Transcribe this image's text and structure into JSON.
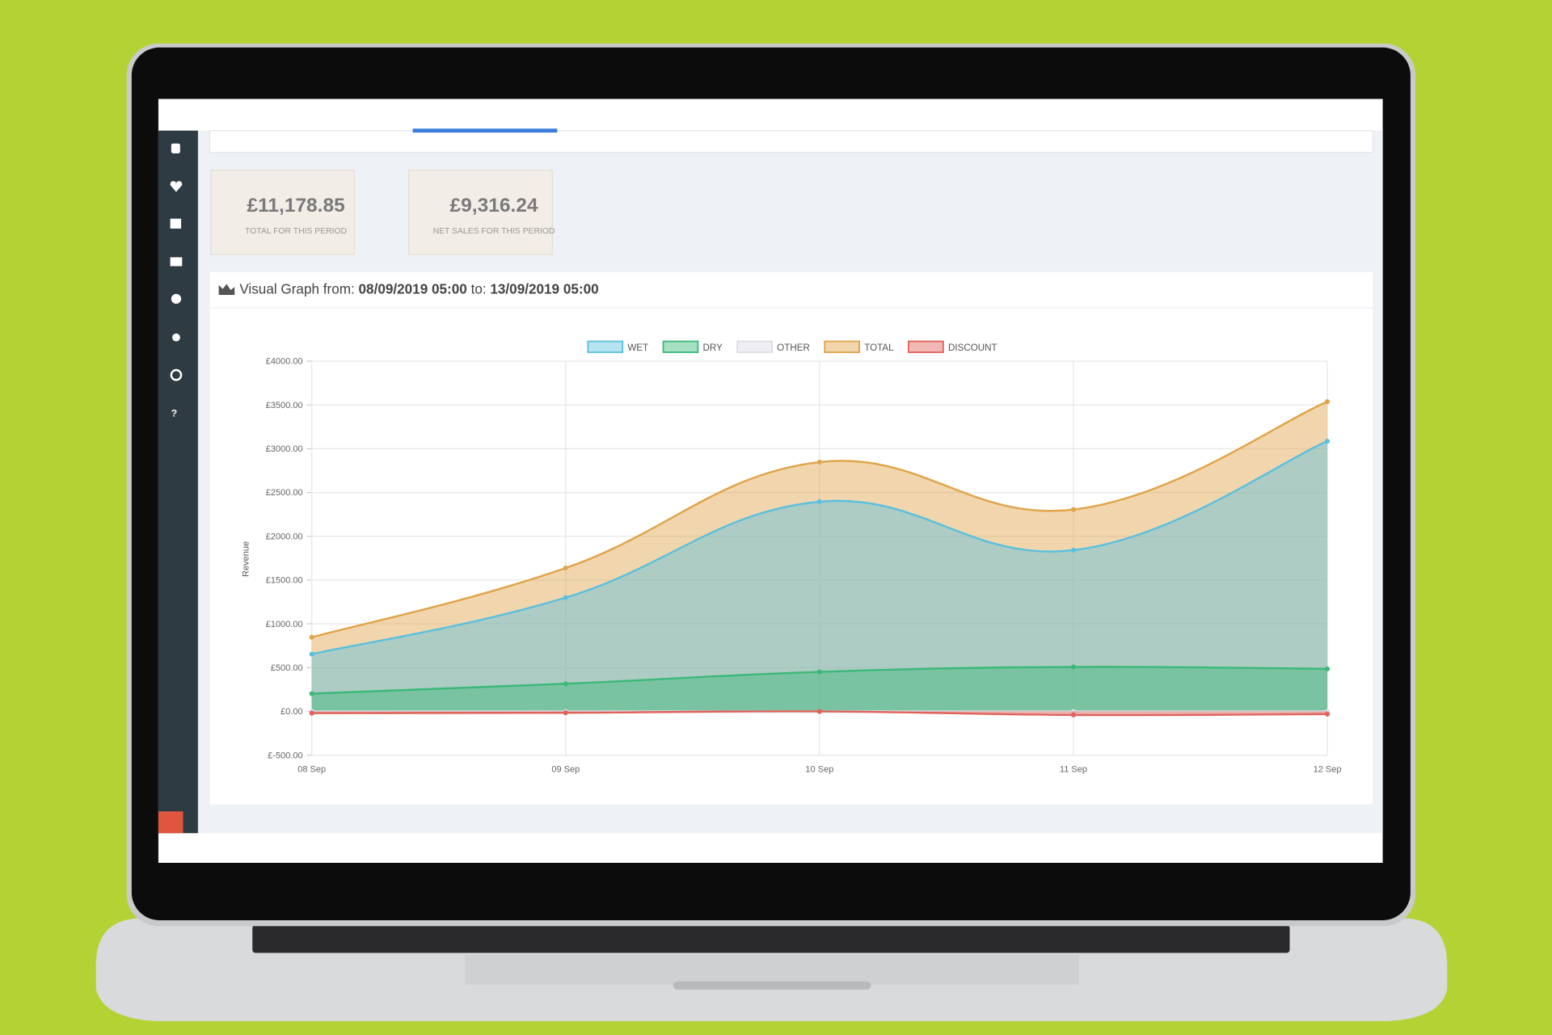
{
  "stats": [
    {
      "value": "£11,178.85",
      "label": "TOTAL FOR THIS PERIOD"
    },
    {
      "value": "£9,316.24",
      "label": "NET SALES FOR THIS PERIOD"
    }
  ],
  "graph_header": {
    "prefix": "Visual Graph from:",
    "from": "08/09/2019 05:00",
    "middle": "to:",
    "to": "13/09/2019 05:00"
  },
  "chart_data": {
    "type": "area",
    "y_label": "Revenue",
    "categories": [
      "08 Sep",
      "09 Sep",
      "10 Sep",
      "11 Sep",
      "12 Sep"
    ],
    "series": [
      {
        "name": "WET",
        "color": "#5bc0de",
        "values": [
          655,
          1300,
          2395,
          1842,
          3085
        ]
      },
      {
        "name": "DRY",
        "color": "#3cb87a",
        "values": [
          203,
          316,
          452,
          508,
          486
        ]
      },
      {
        "name": "OTHER",
        "color": "#dcdce4",
        "values": [
          0,
          0,
          0,
          0,
          0
        ]
      },
      {
        "name": "TOTAL",
        "color": "#e0a44a",
        "values": [
          847,
          1638,
          2847,
          2305,
          3537
        ]
      },
      {
        "name": "DISCOUNT",
        "color": "#e0625a",
        "values": [
          -20,
          -15,
          0,
          -40,
          -30
        ]
      }
    ],
    "ylim": [
      -500,
      4000
    ],
    "yticks": [
      {
        "value": -500,
        "label": "£-500.00"
      },
      {
        "value": 0,
        "label": "£0.00"
      },
      {
        "value": 500,
        "label": "£500.00"
      },
      {
        "value": 1000,
        "label": "£1000.00"
      },
      {
        "value": 1500,
        "label": "£1500.00"
      },
      {
        "value": 2000,
        "label": "£2000.00"
      },
      {
        "value": 2500,
        "label": "£2500.00"
      },
      {
        "value": 3000,
        "label": "£3000.00"
      },
      {
        "value": 3500,
        "label": "£3500.00"
      },
      {
        "value": 4000,
        "label": "£4000.00"
      }
    ],
    "grid": true
  }
}
